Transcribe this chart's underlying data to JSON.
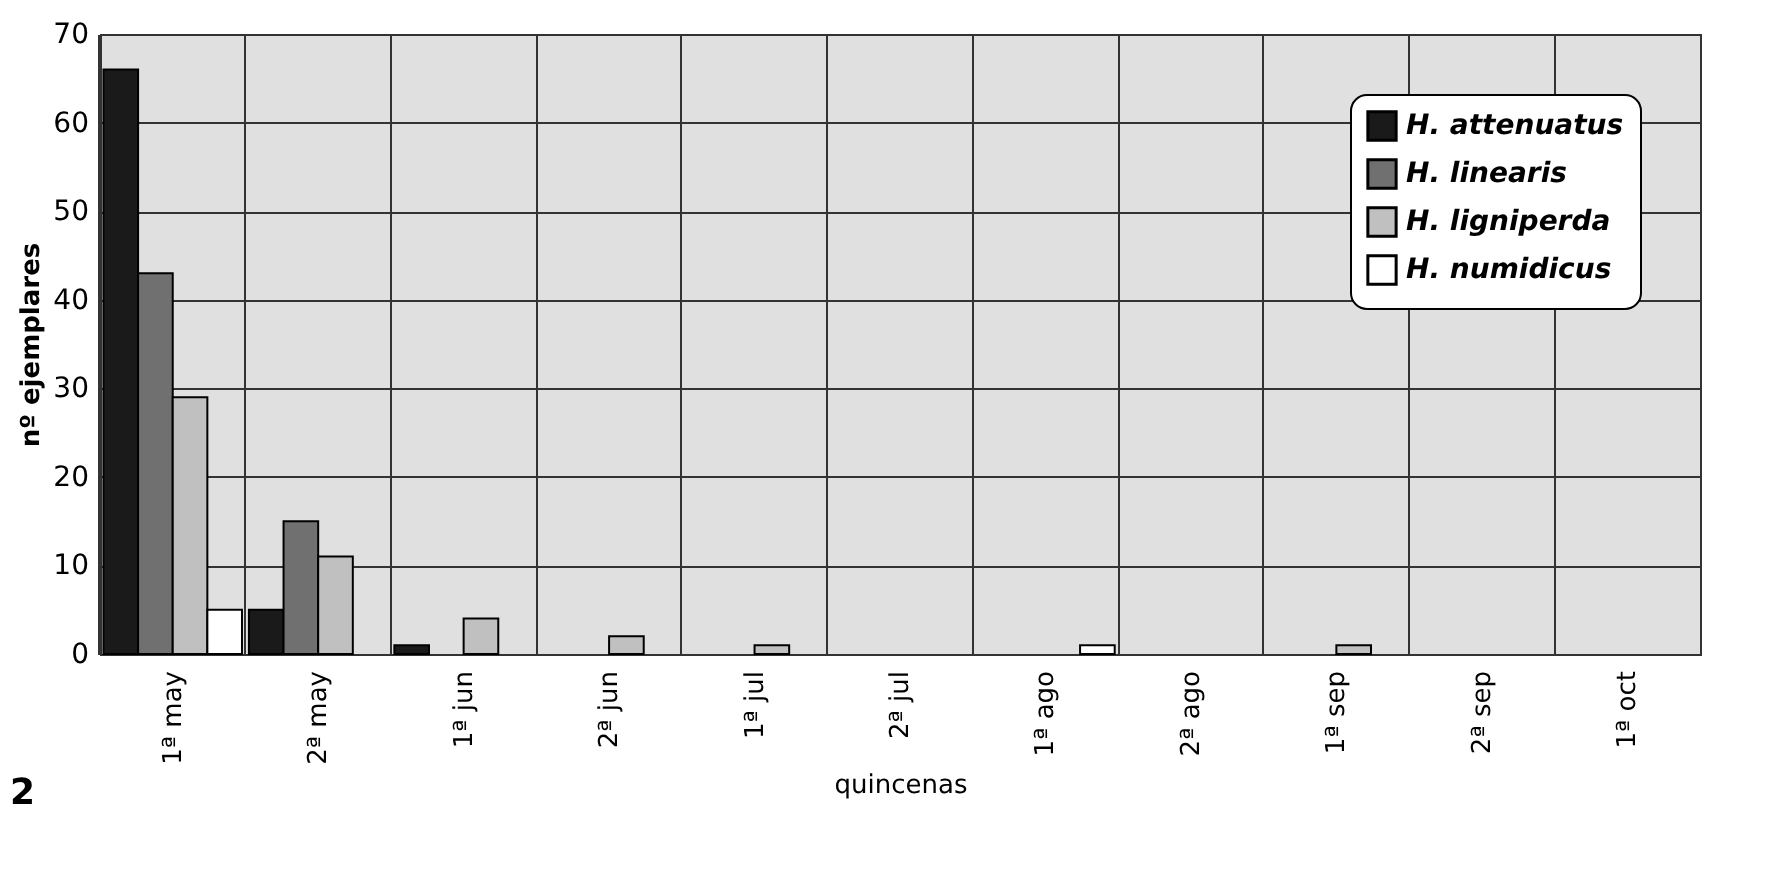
{
  "chart_data": {
    "type": "bar",
    "xlabel": "quincenas",
    "ylabel": "nº ejemplares",
    "categories": [
      "1ª may",
      "2ª may",
      "1ª jun",
      "2ª jun",
      "1ª jul",
      "2ª jul",
      "1ª ago",
      "2ª ago",
      "1ª sep",
      "2ª sep",
      "1ª oct"
    ],
    "series": [
      {
        "name": "H. attenuatus",
        "color": "#1a1a1a",
        "values": [
          66,
          5,
          1,
          0,
          0,
          0,
          0,
          0,
          0,
          0,
          0
        ]
      },
      {
        "name": "H. linearis",
        "color": "#707070",
        "values": [
          43,
          15,
          0,
          0,
          0,
          0,
          0,
          0,
          0,
          0,
          0
        ]
      },
      {
        "name": "H. ligniperda",
        "color": "#c0c0c0",
        "values": [
          29,
          11,
          4,
          2,
          1,
          0,
          0,
          0,
          1,
          0,
          0
        ]
      },
      {
        "name": "H. numidicus",
        "color": "#ffffff",
        "values": [
          5,
          0,
          0,
          0,
          0,
          0,
          1,
          0,
          0,
          0,
          0
        ]
      }
    ],
    "ylim": [
      0,
      70
    ],
    "yticks": [
      0,
      10,
      20,
      30,
      40,
      50,
      60,
      70
    ],
    "grid": true,
    "legend": "top right",
    "annotations": [
      "2"
    ]
  }
}
